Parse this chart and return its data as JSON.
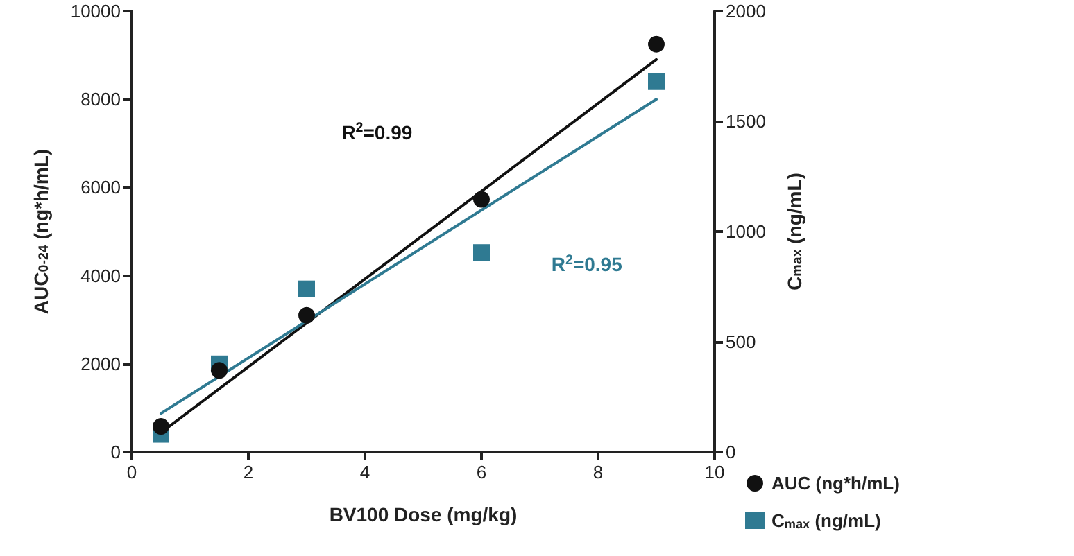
{
  "chart_data": {
    "type": "scatter",
    "xlabel": "BV100 Dose (mg/kg)",
    "ylabel": "AUC$_{0-24}$ (ng*h/mL)",
    "y2label": "C$_{max}$ (ng/mL)",
    "xlim": [
      0,
      10
    ],
    "xticks": [
      0,
      2,
      4,
      6,
      8,
      10
    ],
    "ylim": [
      0,
      10000
    ],
    "yticks": [
      0,
      2000,
      4000,
      6000,
      8000,
      10000
    ],
    "y2lim": [
      0,
      2000
    ],
    "y2ticks": [
      0,
      500,
      1000,
      1500,
      2000
    ],
    "grid": false,
    "legend": "bottom right",
    "series": [
      {
        "name": "AUC (ng*h/mL)",
        "color": "#111111",
        "marker": "circle",
        "x": [
          0.5,
          1.5,
          3,
          6,
          9
        ],
        "values": [
          580,
          1850,
          3100,
          5730,
          9250
        ]
      },
      {
        "name": "C$_{max}$ (ng/mL)",
        "color": "#2f7a92",
        "marker": "square",
        "axis": "y2",
        "x": [
          0.5,
          1.5,
          3,
          6,
          9
        ],
        "values": [
          80,
          400,
          740,
          905,
          1680
        ]
      },
      {
        "type": "line",
        "color": "#111111",
        "marker": "none",
        "x": [
          0.5,
          9
        ],
        "values": [
          440,
          8900
        ]
      },
      {
        "type": "line",
        "color": "#2f7a92",
        "marker": "none",
        "axis": "y2",
        "x": [
          0.5,
          9
        ],
        "values": [
          175,
          1600
        ]
      }
    ],
    "annotations": [
      "R$^{2}$=0.99",
      "R$^{2}$=0.95"
    ]
  }
}
